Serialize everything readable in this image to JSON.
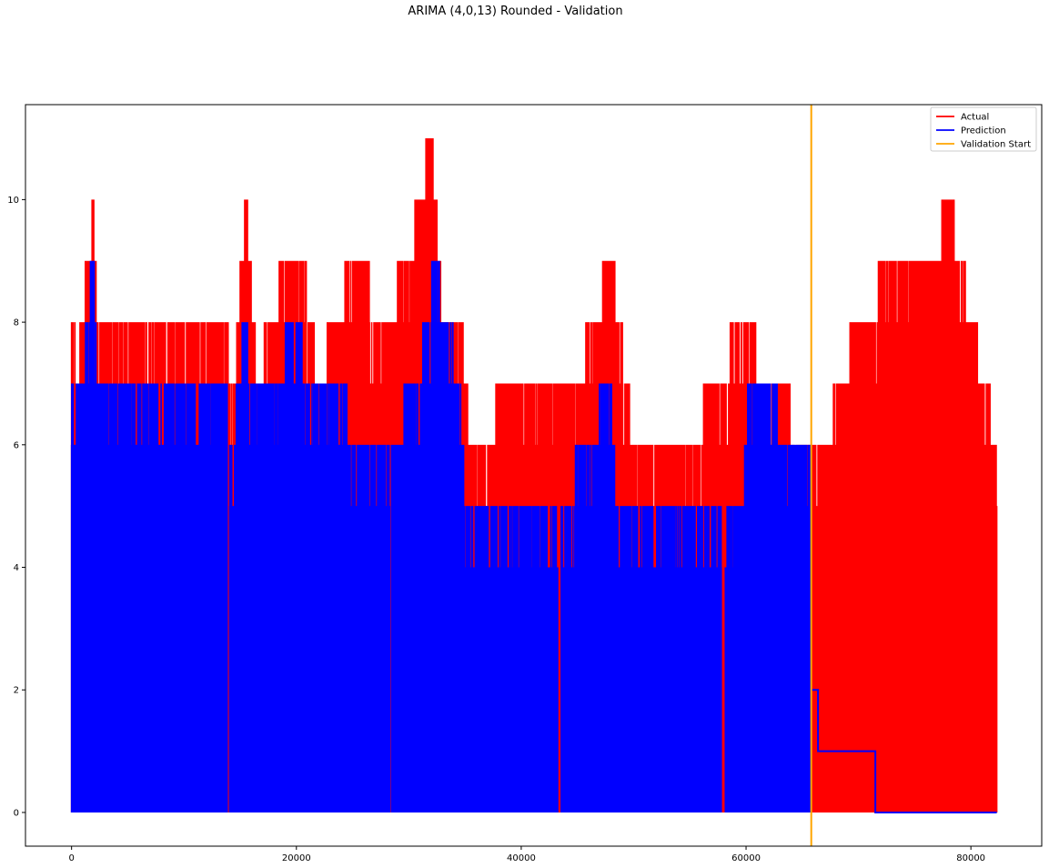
{
  "chart_data": {
    "type": "line",
    "title": "ARIMA (4,0,13) Rounded - Validation",
    "xlabel": "",
    "ylabel": "",
    "xlim": [
      -4100,
      86300
    ],
    "ylim": [
      -0.55,
      11.55
    ],
    "xticks": [
      0,
      20000,
      40000,
      60000,
      80000
    ],
    "xtick_labels": [
      "0",
      "20000",
      "40000",
      "60000",
      "80000"
    ],
    "yticks": [
      0,
      2,
      4,
      6,
      8,
      10
    ],
    "ytick_labels": [
      "0",
      "2",
      "4",
      "6",
      "8",
      "10"
    ],
    "grid": false,
    "legend_position": "top-right",
    "validation_start_x": 65800,
    "colors": {
      "actual": "#ff0000",
      "prediction": "#0000ff",
      "validation": "#ffa500"
    },
    "series": [
      {
        "name": "Actual",
        "envelope": {
          "x": [
            0,
            500,
            1000,
            1900,
            2300,
            5000,
            10000,
            13500,
            14500,
            15500,
            16500,
            19000,
            20500,
            22000,
            25000,
            28000,
            30000,
            32000,
            33000,
            34600,
            35500,
            40000,
            45000,
            48000,
            50000,
            55000,
            59800,
            62000,
            65800,
            67000,
            70000,
            73500,
            76800,
            78000,
            80000,
            82300
          ],
          "ymax": [
            8,
            7,
            8,
            10,
            8,
            8,
            8,
            8,
            7,
            10,
            7,
            9,
            9,
            7,
            9,
            8,
            9,
            11,
            8,
            8,
            6,
            7,
            7,
            9,
            6,
            6,
            8,
            7,
            6,
            6,
            8,
            9,
            9,
            10,
            8,
            6
          ],
          "ymin": [
            0,
            0,
            0,
            0,
            0,
            0,
            0,
            0,
            0,
            0,
            0,
            0,
            0,
            0,
            0,
            0,
            0,
            0,
            0,
            0,
            0,
            0,
            0,
            0,
            0,
            0,
            0,
            0,
            0,
            0,
            0,
            0,
            0,
            0,
            0,
            0
          ]
        },
        "spikes": [
          {
            "x": 300,
            "y": 8
          },
          {
            "x": 1900,
            "y": 10
          },
          {
            "x": 15500,
            "y": 10
          },
          {
            "x": 19000,
            "y": 9
          },
          {
            "x": 20500,
            "y": 9
          },
          {
            "x": 25000,
            "y": 9
          },
          {
            "x": 30200,
            "y": 9
          },
          {
            "x": 31300,
            "y": 9
          },
          {
            "x": 32000,
            "y": 11
          },
          {
            "x": 48000,
            "y": 9
          },
          {
            "x": 59800,
            "y": 8
          },
          {
            "x": 69500,
            "y": 8
          },
          {
            "x": 73200,
            "y": 9
          },
          {
            "x": 76700,
            "y": 9
          },
          {
            "x": 78000,
            "y": 10
          },
          {
            "x": 80000,
            "y": 8
          }
        ]
      },
      {
        "name": "Prediction",
        "envelope": {
          "x": [
            0,
            1000,
            1900,
            2400,
            10000,
            13800,
            14200,
            14800,
            15500,
            16000,
            18800,
            19200,
            20300,
            20800,
            28200,
            28600,
            30500,
            31800,
            32200,
            34500,
            35000,
            43300,
            43700,
            48000,
            48500,
            59700,
            60200,
            65800
          ],
          "ymax": [
            7,
            7,
            9,
            7,
            7,
            7,
            6,
            7,
            8,
            7,
            7,
            8,
            8,
            7,
            6,
            6,
            7,
            8,
            9,
            7,
            5,
            5,
            5,
            7,
            5,
            5,
            7,
            6
          ],
          "ymin": [
            0,
            0,
            0,
            0,
            0,
            0,
            0,
            0,
            0,
            0,
            0,
            0,
            0,
            0,
            0,
            0,
            0,
            0,
            0,
            0,
            0,
            0,
            0,
            0,
            0,
            0,
            0,
            0
          ]
        },
        "validation_steps": [
          {
            "x": 65800,
            "y": 2
          },
          {
            "x": 66400,
            "y": 2
          },
          {
            "x": 66400,
            "y": 1
          },
          {
            "x": 71500,
            "y": 1
          },
          {
            "x": 71500,
            "y": 0
          },
          {
            "x": 82300,
            "y": 0
          }
        ]
      },
      {
        "name": "Validation Start"
      }
    ]
  }
}
